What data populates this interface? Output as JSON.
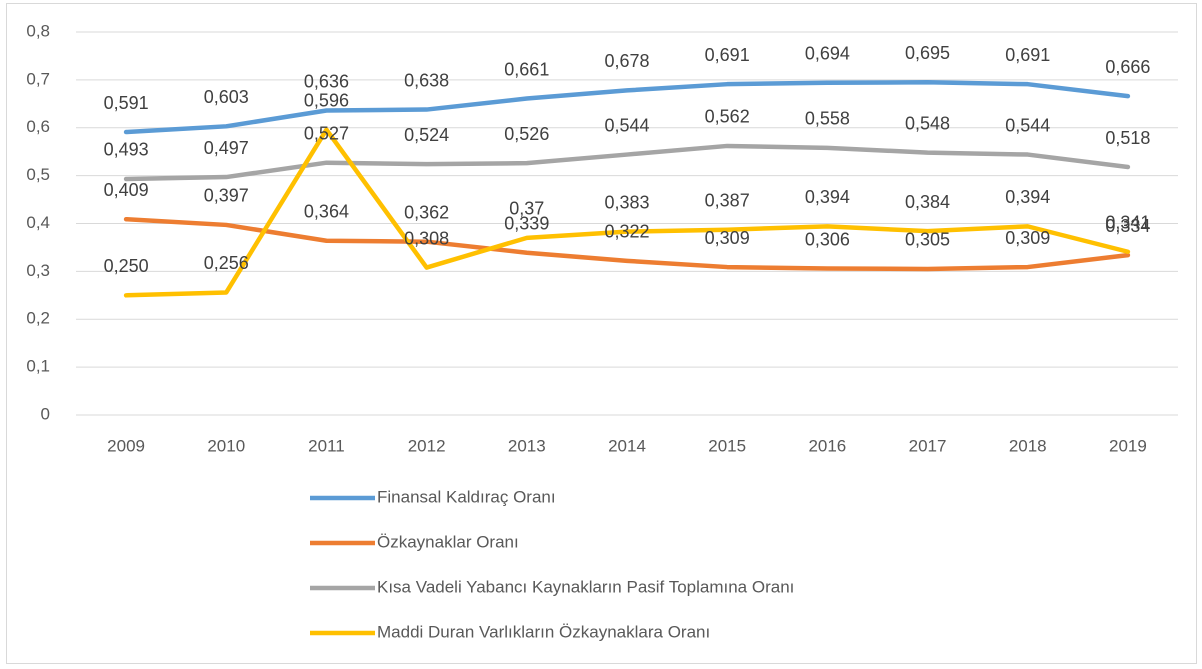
{
  "chart_data": {
    "type": "line",
    "categories": [
      "2009",
      "2010",
      "2011",
      "2012",
      "2013",
      "2014",
      "2015",
      "2016",
      "2017",
      "2018",
      "2019"
    ],
    "series": [
      {
        "name": "Finansal Kaldıraç Oranı",
        "color": "#5b9bd5",
        "values": [
          0.591,
          0.603,
          0.636,
          0.638,
          0.661,
          0.678,
          0.691,
          0.694,
          0.695,
          0.691,
          0.666
        ],
        "value_labels": [
          "0,591",
          "0,603",
          "0,636",
          "0,638",
          "0,661",
          "0,678",
          "0,691",
          "0,694",
          "0,695",
          "0,691",
          "0,666"
        ]
      },
      {
        "name": "Özkaynaklar Oranı",
        "color": "#ed7d31",
        "values": [
          0.409,
          0.397,
          0.364,
          0.362,
          0.339,
          0.322,
          0.309,
          0.306,
          0.305,
          0.309,
          0.334
        ],
        "value_labels": [
          "0,409",
          "0,397",
          "0,364",
          "0,362",
          "0,339",
          "0,322",
          "0,309",
          "0,306",
          "0,305",
          "0,309",
          "0,334"
        ]
      },
      {
        "name": "Kısa Vadeli Yabancı Kaynakların Pasif Toplamına Oranı",
        "color": "#a5a5a5",
        "values": [
          0.493,
          0.497,
          0.527,
          0.524,
          0.526,
          0.544,
          0.562,
          0.558,
          0.548,
          0.544,
          0.518
        ],
        "value_labels": [
          "0,493",
          "0,497",
          "0,527",
          "0,524",
          "0,526",
          "0,544",
          "0,562",
          "0,558",
          "0,548",
          "0,544",
          "0,518"
        ]
      },
      {
        "name": "Maddi Duran Varlıkların Özkaynaklara Oranı",
        "color": "#ffc000",
        "values": [
          0.25,
          0.256,
          0.596,
          0.308,
          0.37,
          0.383,
          0.387,
          0.394,
          0.384,
          0.394,
          0.341
        ],
        "value_labels": [
          "0,250",
          "0,256",
          "0,596",
          "0,308",
          "0,37",
          "0,383",
          "0,387",
          "0,394",
          "0,384",
          "0,394",
          "0,341"
        ]
      }
    ],
    "ylim": [
      0,
      0.8
    ],
    "yticks": [
      0,
      {
        "value": 0.1,
        "label": "0,1"
      },
      {
        "value": 0.2,
        "label": "0,2"
      },
      {
        "value": 0.3,
        "label": "0,3"
      },
      {
        "value": 0.4,
        "label": "0,4"
      },
      {
        "value": 0.5,
        "label": "0,5"
      },
      {
        "value": 0.6,
        "label": "0,6"
      },
      {
        "value": 0.7,
        "label": "0,7"
      },
      {
        "value": 0.8,
        "label": "0,8"
      }
    ],
    "grid": true,
    "legend": "bottom"
  }
}
